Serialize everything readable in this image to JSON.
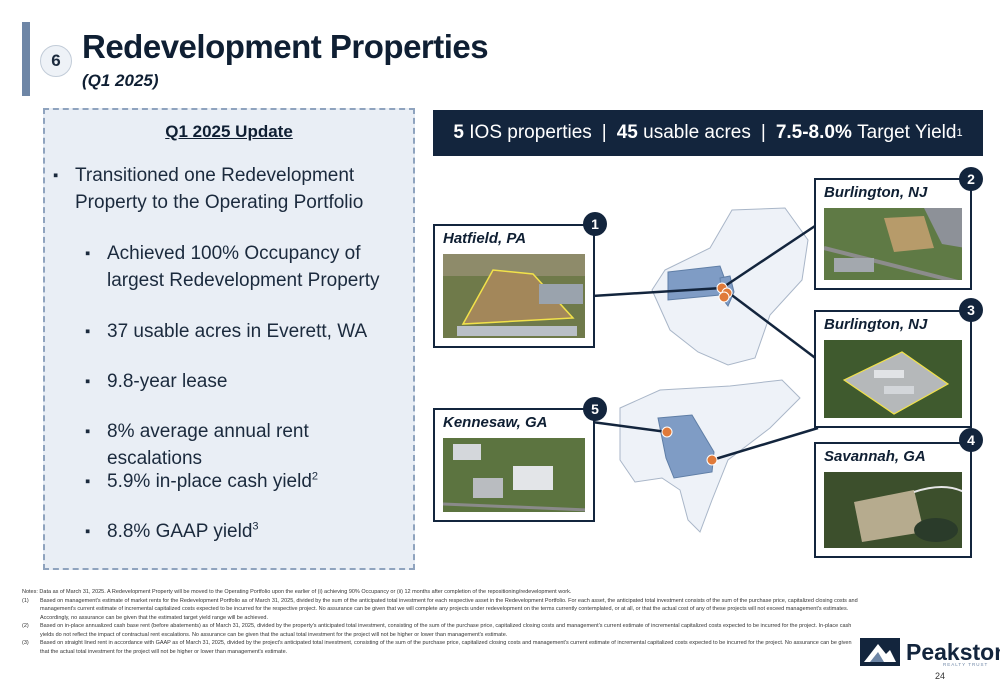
{
  "header": {
    "section_number": "6",
    "title": "Redevelopment Properties",
    "subtitle": "(Q1 2025)"
  },
  "update_panel": {
    "heading": "Q1 2025 Update",
    "main_bullet": "Transitioned one Redevelopment Property to the Operating Portfolio",
    "sub_bullets": [
      "Achieved 100% Occupancy of largest Redevelopment Property",
      "37 usable acres in Everett, WA",
      "9.8-year lease",
      "8% average annual rent escalations",
      "5.9% in-place cash yield",
      "8.8% GAAP yield"
    ],
    "sub_bullet_notes": [
      "",
      "",
      "",
      "",
      "2",
      "3"
    ]
  },
  "stats_banner": {
    "properties_value": "5",
    "properties_label": "IOS properties",
    "acres_value": "45",
    "acres_label": "usable acres",
    "yield_value": "7.5-8.0%",
    "yield_label": "Target Yield",
    "yield_note": "1",
    "separator": "|"
  },
  "properties": [
    {
      "number": "1",
      "location": "Hatfield, PA"
    },
    {
      "number": "2",
      "location": "Burlington, NJ"
    },
    {
      "number": "3",
      "location": "Burlington, NJ"
    },
    {
      "number": "4",
      "location": "Savannah, GA"
    },
    {
      "number": "5",
      "location": "Kennesaw, GA"
    }
  ],
  "notes": {
    "intro": "Notes: Data as of March 31, 2025. A Redevelopment Property will be moved to the Operating Portfolio upon the earlier of (i) achieving 90% Occupancy or (ii) 12 months after completion of the repositioning/redevelopment work.",
    "items": [
      {
        "key": "(1)",
        "text": "Based on management's estimate of market rents for the Redevelopment Portfolio as of March 31, 2025, divided by the sum of the anticipated total investment for each respective asset in the Redevelopment Portfolio. For each asset, the anticipated total investment consists of the sum of the purchase price, capitalized closing costs and management's current estimate of incremental capitalized costs expected to be incurred for the respective project. No assurance can be given that we will complete any projects under redevelopment on the terms currently contemplated, or at all, or that the actual cost of any of these projects will not exceed management's estimates. Accordingly, no assurance can be given that the estimated target yield range will be achieved."
      },
      {
        "key": "(2)",
        "text": "Based on in-place annualized cash base rent (before abatements) as of March 31, 2025, divided by the property's anticipated total investment, consisting of the sum of the purchase price, capitalized closing costs and management's current estimate of incremental capitalized costs expected to be incurred for the project. In-place cash yields do not reflect the impact of contractual rent escalations. No assurance can be given that the actual total investment for the project will not be higher or lower than management's estimate."
      },
      {
        "key": "(3)",
        "text": "Based on straight lined rent in accordance with GAAP as of March 31, 2025, divided by the project's anticipated total investment, consisting of the sum of the purchase price, capitalized closing costs and management's current estimate of incremental capitalized costs expected to be incurred for the project. No assurance can be given that the actual total investment for the project will not be higher or lower than management's estimate."
      }
    ]
  },
  "logo": {
    "name": "Peakstone",
    "tagline": "REALTY TRUST"
  },
  "page_number": "24",
  "colors": {
    "navy": "#13253d",
    "accent_bar": "#6e86a6",
    "panel_bg": "#e9eef5",
    "state_highlight": "#7f9cc5",
    "marker": "#e07a3a"
  }
}
